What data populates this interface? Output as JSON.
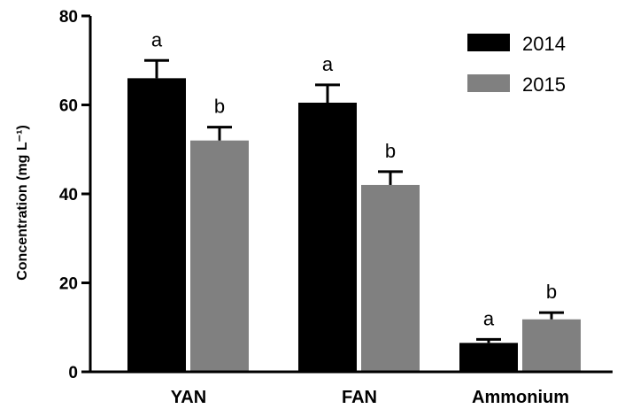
{
  "chart_data": {
    "type": "bar",
    "title": "",
    "xlabel": "",
    "ylabel": "Concentration (mg L⁻¹)",
    "ylim": [
      0,
      80
    ],
    "yticks": [
      0,
      20,
      40,
      60,
      80
    ],
    "categories": [
      "YAN",
      "FAN",
      "Ammonium"
    ],
    "series": [
      {
        "name": "2014",
        "color": "#000000",
        "values": [
          66,
          60.5,
          6.5
        ],
        "errors": [
          4,
          4,
          0.8
        ],
        "sig_letters": [
          "a",
          "a",
          "a"
        ]
      },
      {
        "name": "2015",
        "color": "#808080",
        "values": [
          52,
          42,
          11.8
        ],
        "errors": [
          3,
          3,
          1.5
        ],
        "sig_letters": [
          "b",
          "b",
          "b"
        ]
      }
    ],
    "legend_position": "top-right",
    "grid": false
  }
}
